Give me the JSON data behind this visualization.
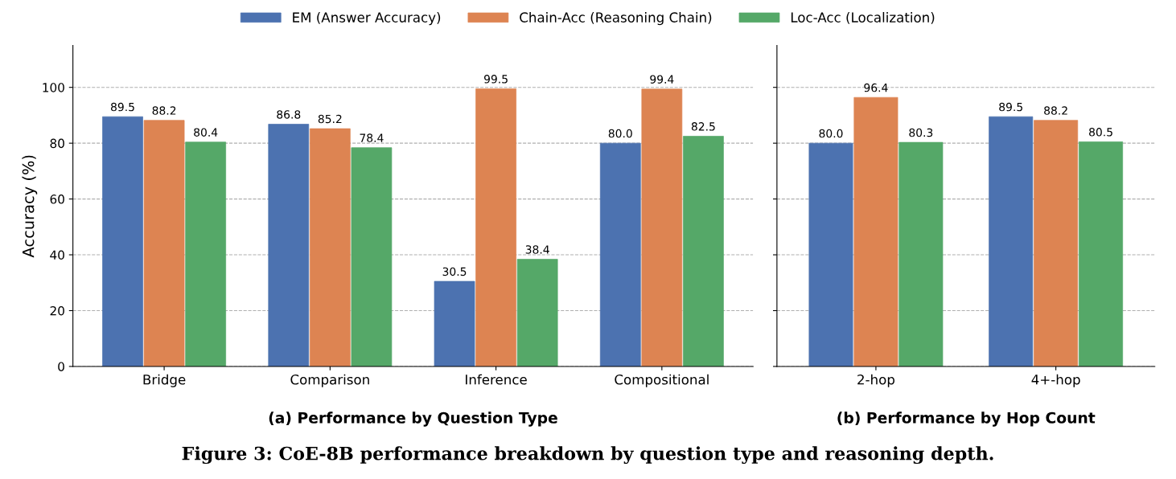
{
  "chart_data": [
    {
      "type": "bar",
      "title": "(a) Performance by Question Type",
      "ylabel": "Accuracy (%)",
      "categories": [
        "Bridge",
        "Comparison",
        "Inference",
        "Compositional"
      ],
      "series": [
        {
          "name": "EM (Answer Accuracy)",
          "color": "#4c72b0",
          "values": [
            89.5,
            86.8,
            30.5,
            80.0
          ],
          "value_labels": [
            "89.5",
            "86.8",
            "30.5",
            "80.0"
          ]
        },
        {
          "name": "Chain-Acc (Reasoning Chain)",
          "color": "#dd8452",
          "values": [
            88.2,
            85.2,
            99.5,
            99.4
          ],
          "value_labels": [
            "88.2",
            "85.2",
            "99.5",
            "99.4"
          ]
        },
        {
          "name": "Loc-Acc (Localization)",
          "color": "#55a868",
          "values": [
            80.4,
            78.4,
            38.4,
            82.5
          ],
          "value_labels": [
            "80.4",
            "78.4",
            "38.4",
            "82.5"
          ]
        }
      ],
      "ylim": [
        0,
        115
      ],
      "yticks": [
        0,
        20,
        40,
        60,
        80,
        100
      ],
      "grid": "y",
      "legend": "top",
      "annotations": [
        "Figure 3: CoE-8B performance breakdown by question type and reasoning depth."
      ]
    },
    {
      "type": "bar",
      "title": "(b) Performance by Hop Count",
      "categories": [
        "2-hop",
        "4+-hop"
      ],
      "series": [
        {
          "color": "#4c72b0",
          "values": [
            80.0,
            89.5
          ],
          "value_labels": [
            "80.0",
            "89.5"
          ]
        },
        {
          "color": "#dd8452",
          "values": [
            96.4,
            88.2
          ],
          "value_labels": [
            "96.4",
            "88.2"
          ]
        },
        {
          "color": "#55a868",
          "values": [
            80.3,
            80.5
          ],
          "value_labels": [
            "80.3",
            "80.5"
          ]
        }
      ],
      "ylim": [
        0,
        115
      ],
      "yticks": [
        0,
        20,
        40,
        60,
        80,
        100
      ],
      "grid": "y",
      "tick_labels": "x"
    }
  ]
}
